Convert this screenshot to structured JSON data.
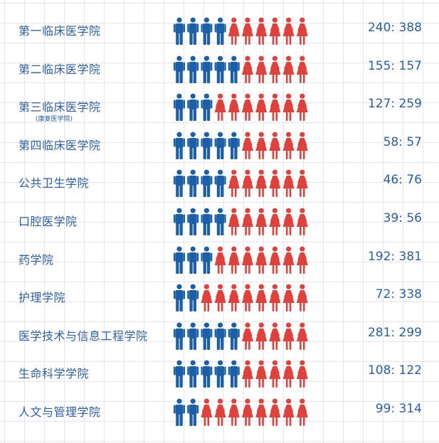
{
  "chart_data": {
    "type": "table",
    "rows": [
      {
        "name": "第一临床医学院",
        "note": "",
        "male": 240,
        "female": 388,
        "male_icons": 4,
        "ratio_text": "240: 388"
      },
      {
        "name": "第二临床医学院",
        "note": "",
        "male": 155,
        "female": 157,
        "male_icons": 5,
        "ratio_text": "155: 157"
      },
      {
        "name": "第三临床医学院",
        "note": "(康复医学院)",
        "male": 127,
        "female": 259,
        "male_icons": 3,
        "ratio_text": "127: 259"
      },
      {
        "name": "第四临床医学院",
        "note": "",
        "male": 58,
        "female": 57,
        "male_icons": 5,
        "ratio_text": "58: 57"
      },
      {
        "name": "公共卫生学院",
        "note": "",
        "male": 46,
        "female": 76,
        "male_icons": 4,
        "ratio_text": "46: 76"
      },
      {
        "name": "口腔医学院",
        "note": "",
        "male": 39,
        "female": 56,
        "male_icons": 4,
        "ratio_text": "39: 56"
      },
      {
        "name": "药学院",
        "note": "",
        "male": 192,
        "female": 381,
        "male_icons": 3,
        "ratio_text": "192: 381"
      },
      {
        "name": "护理学院",
        "note": "",
        "male": 72,
        "female": 338,
        "male_icons": 2,
        "ratio_text": "72: 338"
      },
      {
        "name": "医学技术与信息工程学院",
        "note": "",
        "male": 281,
        "female": 299,
        "male_icons": 5,
        "ratio_text": "281: 299"
      },
      {
        "name": "生命科学学院",
        "note": "",
        "male": 108,
        "female": 122,
        "male_icons": 5,
        "ratio_text": "108: 122"
      },
      {
        "name": "人文与管理学院",
        "note": "",
        "male": 99,
        "female": 314,
        "male_icons": 2,
        "ratio_text": "99: 314"
      }
    ],
    "icons_per_row": 10,
    "colors": {
      "male": "#1b5fa8",
      "female": "#e0413b",
      "text": "#2a5ea8"
    }
  }
}
